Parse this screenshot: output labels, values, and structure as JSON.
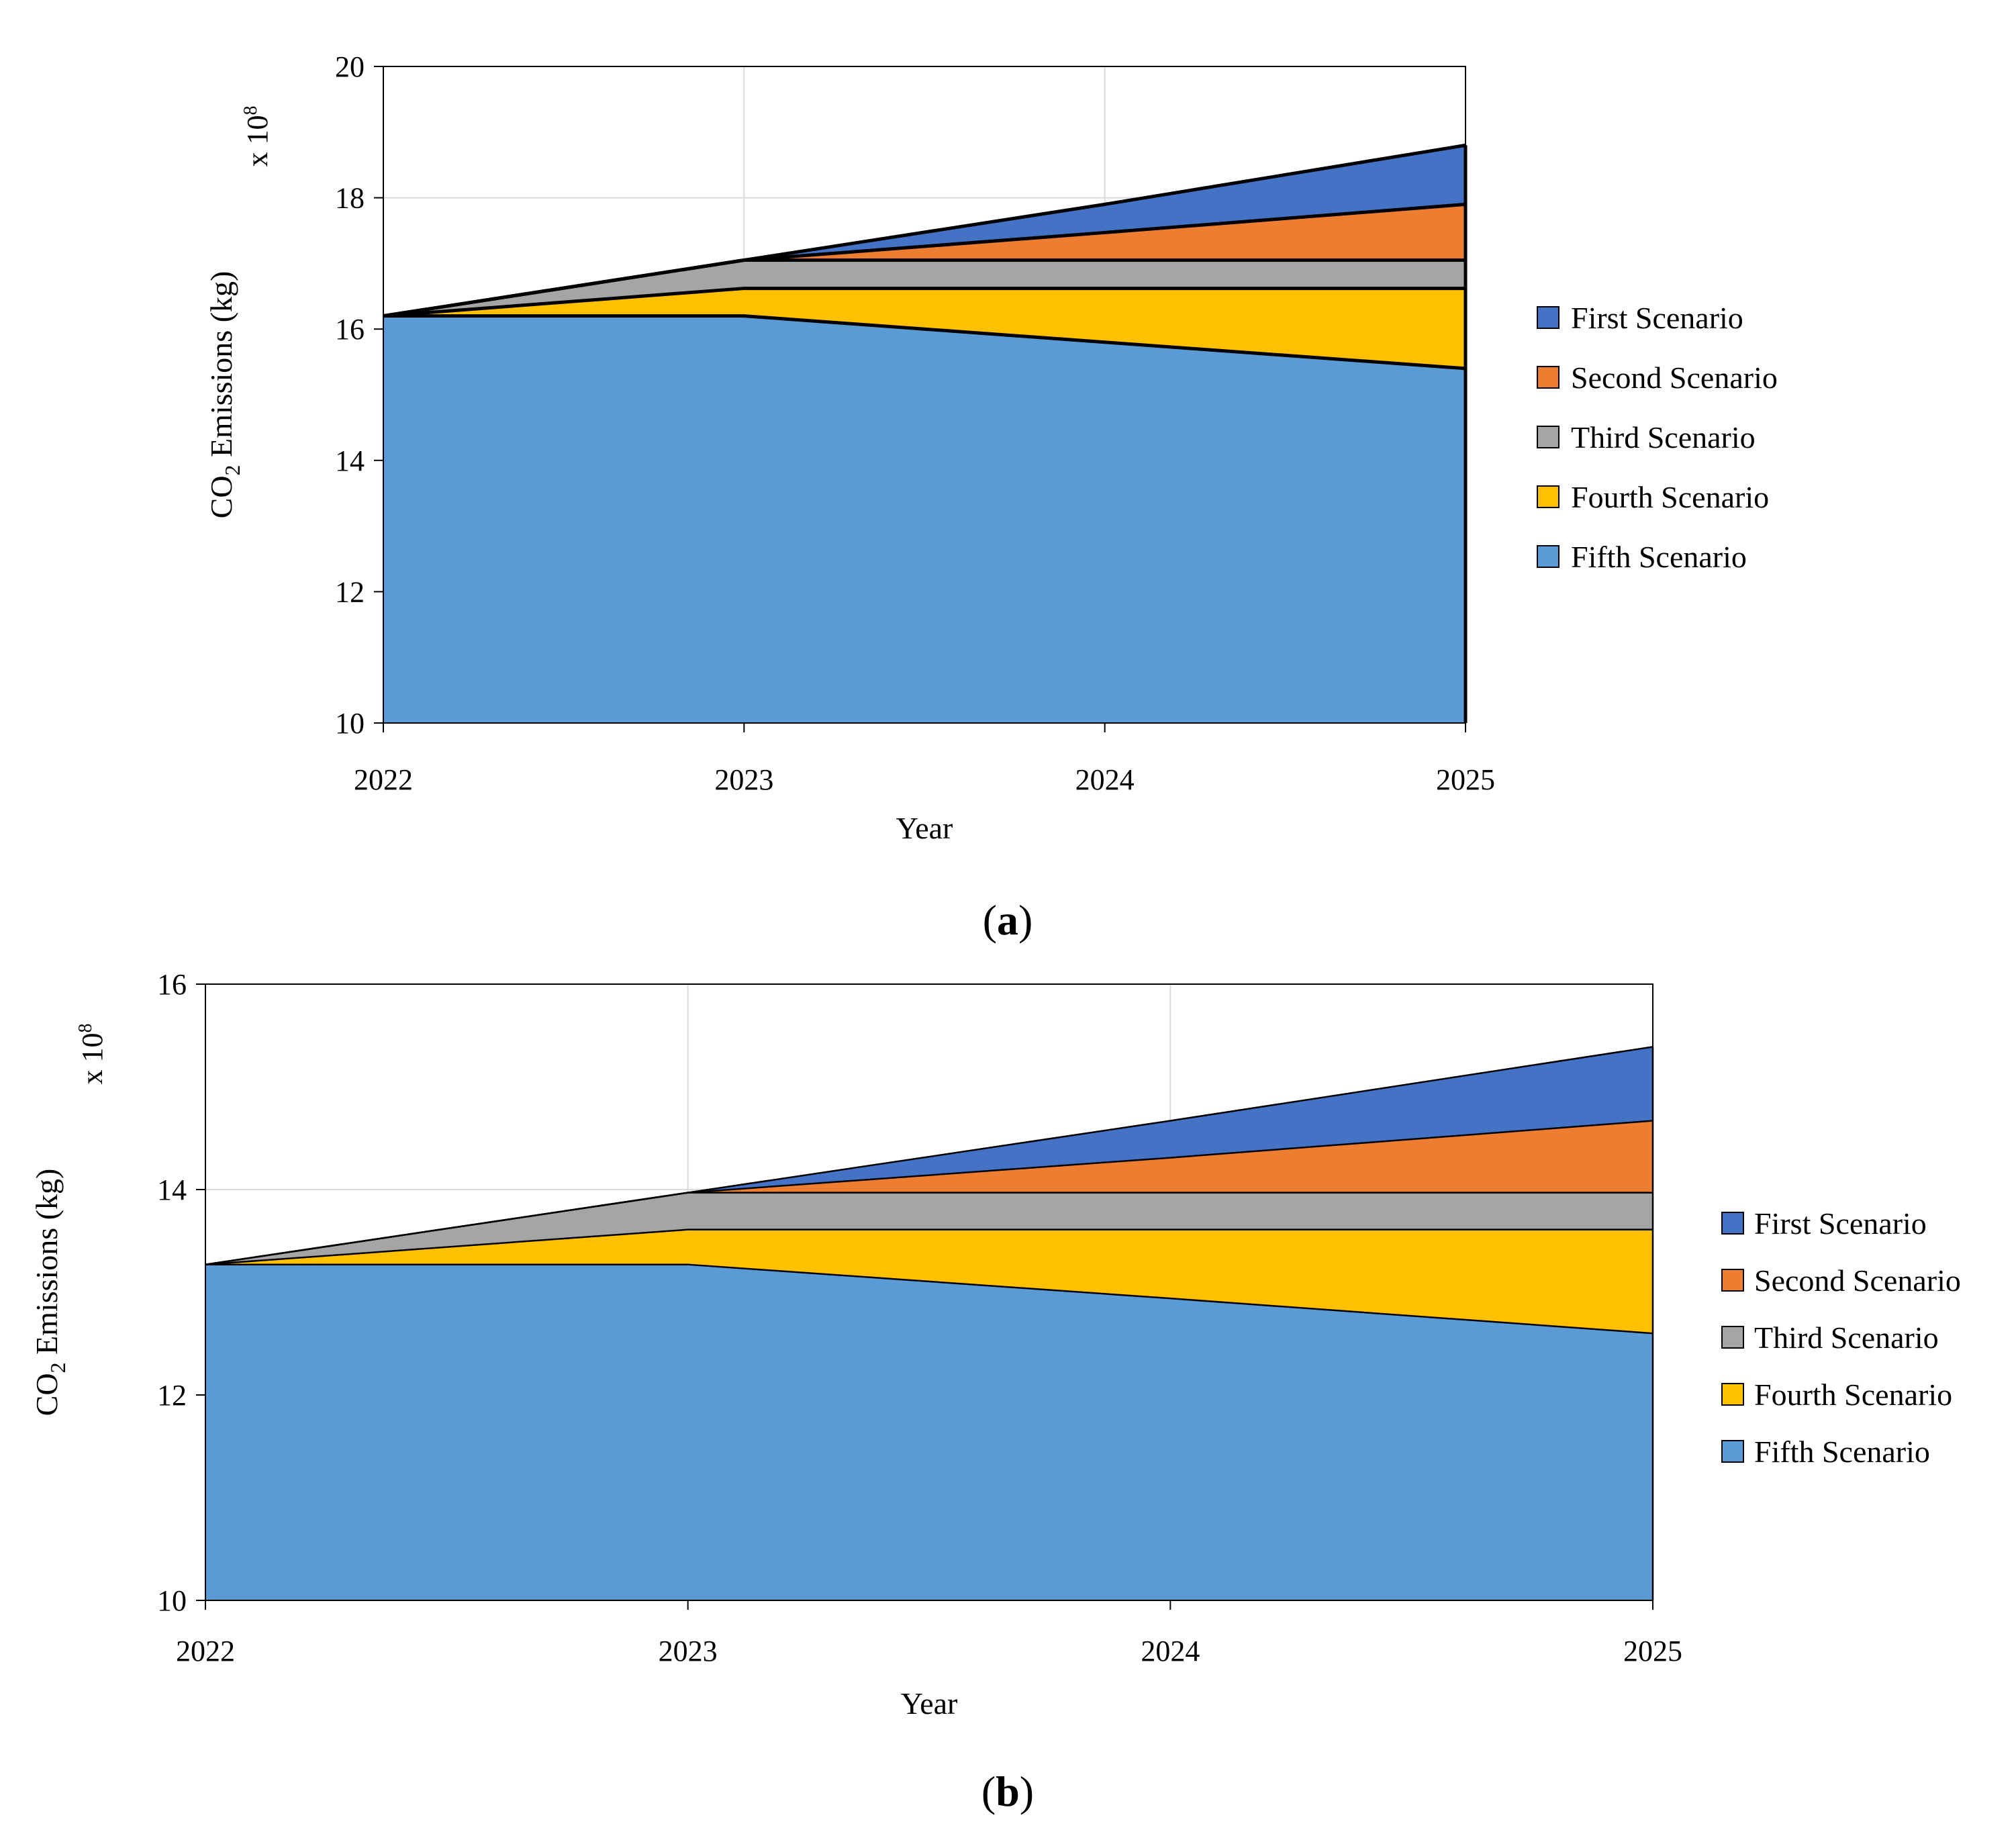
{
  "chart_data": [
    {
      "type": "area",
      "panel": "a",
      "caption_paren_open": "(",
      "caption_letter": "a",
      "caption_paren_close": ")",
      "xlabel": "Year",
      "ylabel_prefix": "CO",
      "ylabel_sub": "2",
      "ylabel_suffix": " Emissions (kg)",
      "multiplier_base": "x 10",
      "multiplier_exp": "8",
      "categories": [
        "2022",
        "2023",
        "2024",
        "2025"
      ],
      "ylim": [
        10,
        20
      ],
      "yticks": [
        10,
        12,
        14,
        16,
        18,
        20
      ],
      "grid": true,
      "legend_position": "right",
      "series": [
        {
          "name": "First Scenario",
          "color": "#4472c4",
          "values": [
            16.2,
            17.05,
            17.9,
            18.8
          ]
        },
        {
          "name": "Second Scenario",
          "color": "#ed7d31",
          "values": [
            16.2,
            17.05,
            17.47,
            17.9
          ]
        },
        {
          "name": "Third Scenario",
          "color": "#a5a5a5",
          "values": [
            16.2,
            17.05,
            17.05,
            17.05
          ]
        },
        {
          "name": "Fourth Scenario",
          "color": "#ffc000",
          "values": [
            16.2,
            16.62,
            16.62,
            16.62
          ]
        },
        {
          "name": "Fifth Scenario",
          "color": "#5b9bd5",
          "values": [
            16.2,
            16.2,
            15.8,
            15.4
          ]
        }
      ]
    },
    {
      "type": "area",
      "panel": "b",
      "caption_paren_open": "(",
      "caption_letter": "b",
      "caption_paren_close": ")",
      "xlabel": "Year",
      "ylabel_prefix": "CO",
      "ylabel_sub": "2",
      "ylabel_suffix": " Emissions (kg)",
      "multiplier_base": "x 10",
      "multiplier_exp": "8",
      "categories": [
        "2022",
        "2023",
        "2024",
        "2025"
      ],
      "ylim": [
        10,
        16
      ],
      "yticks": [
        10,
        12,
        14,
        16
      ],
      "grid": true,
      "legend_position": "right",
      "series": [
        {
          "name": "First Scenario",
          "color": "#4472c4",
          "values": [
            13.27,
            13.97,
            14.67,
            15.39
          ]
        },
        {
          "name": "Second Scenario",
          "color": "#ed7d31",
          "values": [
            13.27,
            13.97,
            14.31,
            14.67
          ]
        },
        {
          "name": "Third Scenario",
          "color": "#a5a5a5",
          "values": [
            13.27,
            13.97,
            13.97,
            13.97
          ]
        },
        {
          "name": "Fourth Scenario",
          "color": "#ffc000",
          "values": [
            13.27,
            13.61,
            13.61,
            13.61
          ]
        },
        {
          "name": "Fifth Scenario",
          "color": "#5b9bd5",
          "values": [
            13.27,
            13.27,
            12.94,
            12.6
          ]
        }
      ]
    }
  ]
}
